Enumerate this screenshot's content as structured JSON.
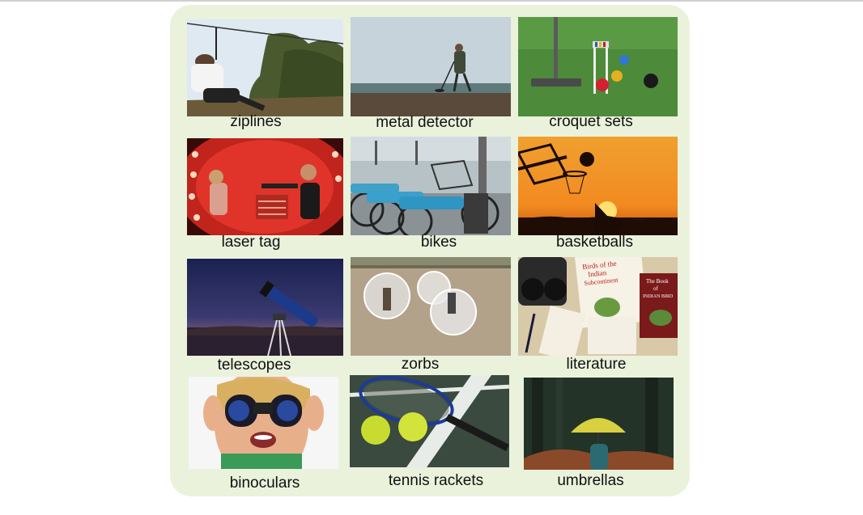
{
  "items": [
    {
      "label": "ziplines",
      "image": "zipline-photo"
    },
    {
      "label": "metal detector",
      "image": "metal-detector-photo"
    },
    {
      "label": "croquet sets",
      "image": "croquet-photo"
    },
    {
      "label": "laser tag",
      "image": "laser-tag-photo"
    },
    {
      "label": "bikes",
      "image": "bikes-photo"
    },
    {
      "label": "basketballs",
      "image": "basketball-photo"
    },
    {
      "label": "telescopes",
      "image": "telescope-photo"
    },
    {
      "label": "zorbs",
      "image": "zorbs-photo"
    },
    {
      "label": "literature",
      "image": "literature-photo"
    },
    {
      "label": "binoculars",
      "image": "binoculars-photo"
    },
    {
      "label": "tennis rackets",
      "image": "tennis-photo"
    },
    {
      "label": "umbrellas",
      "image": "umbrella-photo"
    }
  ],
  "books": {
    "title_1": "Birds of the Indian Subcontinent",
    "title_2": "The Book of INDIAN BIRDS"
  }
}
